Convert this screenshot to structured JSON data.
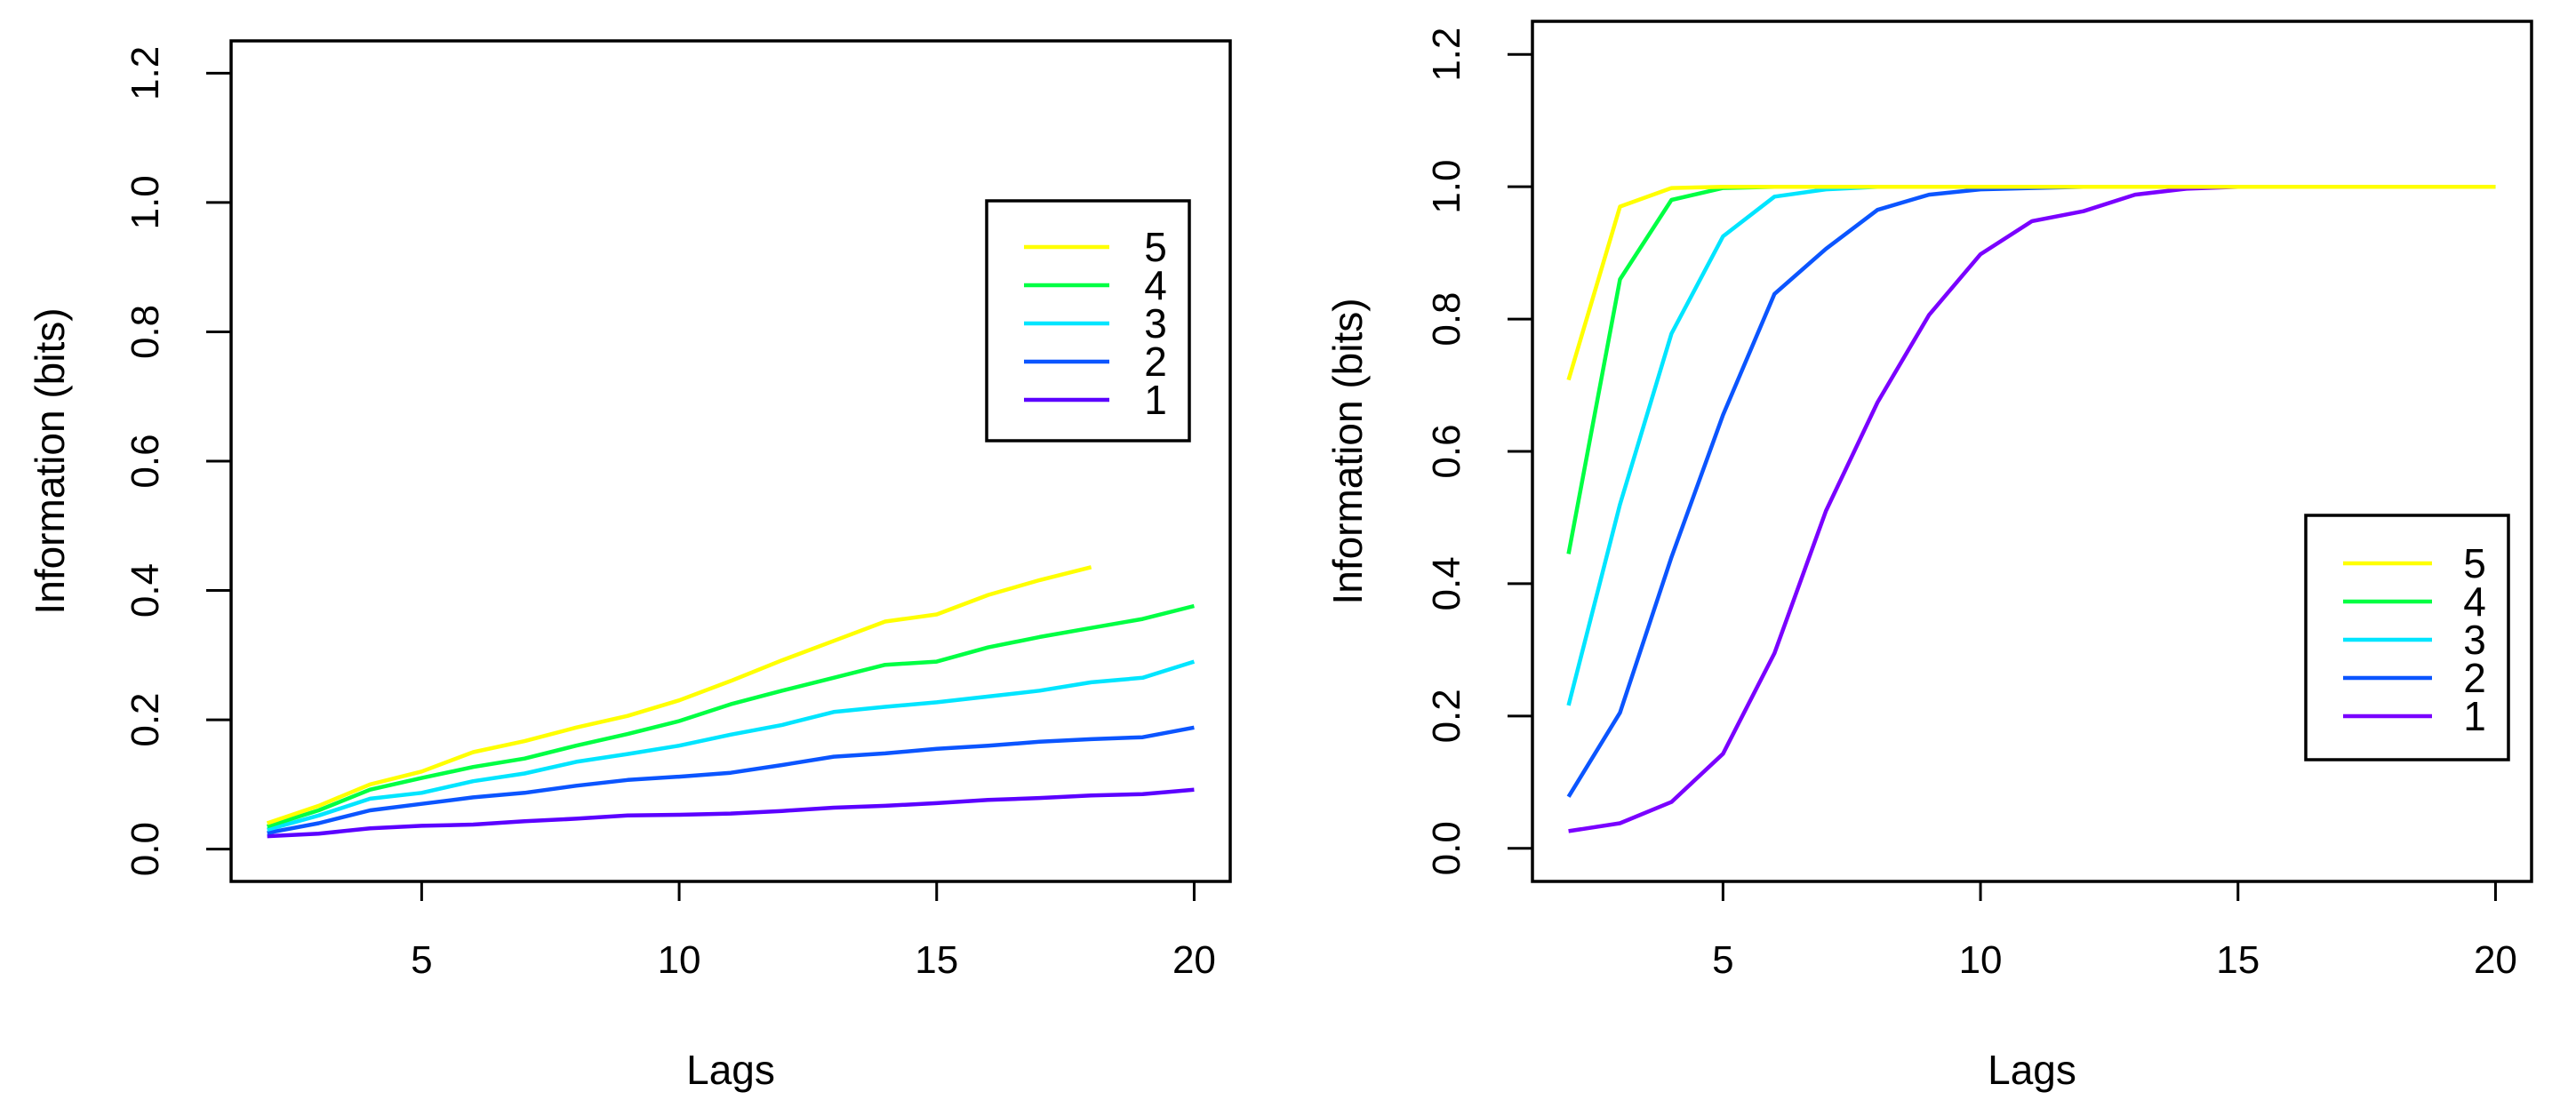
{
  "chart_data": [
    {
      "type": "line",
      "xlabel": "Lags",
      "ylabel": "Information (bits)",
      "xlim": [
        1.3,
        20.7
      ],
      "ylim": [
        -0.05,
        1.25
      ],
      "xticks": [
        5,
        10,
        15,
        20
      ],
      "yticks": [
        0.0,
        0.2,
        0.4,
        0.6,
        0.8,
        1.0,
        1.2
      ],
      "ytick_labels": [
        "0.0",
        "0.2",
        "0.4",
        "0.6",
        "0.8",
        "1.0",
        "1.2"
      ],
      "legend_position": "upper-right",
      "legend_order": [
        "5",
        "4",
        "3",
        "2",
        "1"
      ],
      "series": [
        {
          "name": "1",
          "color": "#5b00ff",
          "x": [
            2,
            3,
            4,
            5,
            6,
            7,
            8,
            9,
            10,
            11,
            12,
            13,
            14,
            15,
            16,
            17,
            18,
            19,
            20
          ],
          "values": [
            0.02,
            0.024,
            0.032,
            0.036,
            0.038,
            0.043,
            0.047,
            0.052,
            0.053,
            0.055,
            0.059,
            0.064,
            0.067,
            0.071,
            0.076,
            0.079,
            0.083,
            0.085,
            0.092
          ]
        },
        {
          "name": "2",
          "color": "#0b55ff",
          "x": [
            2,
            3,
            4,
            5,
            6,
            7,
            8,
            9,
            10,
            11,
            12,
            13,
            14,
            15,
            16,
            17,
            18,
            19,
            20
          ],
          "values": [
            0.025,
            0.04,
            0.06,
            0.07,
            0.08,
            0.087,
            0.098,
            0.107,
            0.112,
            0.118,
            0.13,
            0.143,
            0.148,
            0.155,
            0.16,
            0.166,
            0.17,
            0.173,
            0.188
          ]
        },
        {
          "name": "3",
          "color": "#00e5ff",
          "x": [
            2,
            3,
            4,
            5,
            6,
            7,
            8,
            9,
            10,
            11,
            12,
            13,
            14,
            15,
            16,
            17,
            18,
            19,
            20
          ],
          "values": [
            0.03,
            0.052,
            0.078,
            0.087,
            0.105,
            0.117,
            0.135,
            0.147,
            0.16,
            0.177,
            0.192,
            0.212,
            0.22,
            0.227,
            0.236,
            0.245,
            0.258,
            0.265,
            0.29
          ]
        },
        {
          "name": "4",
          "color": "#00ff43",
          "x": [
            2,
            3,
            4,
            5,
            6,
            7,
            8,
            9,
            10,
            11,
            12,
            13,
            14,
            15,
            16,
            17,
            18,
            19,
            20
          ],
          "values": [
            0.035,
            0.06,
            0.092,
            0.11,
            0.127,
            0.14,
            0.16,
            0.178,
            0.198,
            0.224,
            0.245,
            0.265,
            0.285,
            0.29,
            0.312,
            0.328,
            0.342,
            0.356,
            0.376
          ]
        },
        {
          "name": "5",
          "color": "#ffff00",
          "x": [
            2,
            3,
            4,
            5,
            6,
            7,
            8,
            9,
            10,
            11,
            12,
            13,
            14,
            15,
            16,
            17,
            18
          ],
          "values": [
            0.04,
            0.067,
            0.1,
            0.12,
            0.15,
            0.167,
            0.188,
            0.206,
            0.23,
            0.26,
            0.292,
            0.322,
            0.352,
            0.363,
            0.393,
            0.416,
            0.436
          ]
        }
      ]
    },
    {
      "type": "line",
      "xlabel": "Lags",
      "ylabel": "Information (bits)",
      "xlim": [
        1.3,
        20.7
      ],
      "ylim": [
        -0.05,
        1.25
      ],
      "xticks": [
        5,
        10,
        15,
        20
      ],
      "yticks": [
        0.0,
        0.2,
        0.4,
        0.6,
        0.8,
        1.0,
        1.2
      ],
      "ytick_labels": [
        "0.0",
        "0.2",
        "0.4",
        "0.6",
        "0.8",
        "1.0",
        "1.2"
      ],
      "legend_position": "lower-right",
      "legend_order": [
        "5",
        "4",
        "3",
        "2",
        "1"
      ],
      "series": [
        {
          "name": "1",
          "color": "#7a00ff",
          "x": [
            2,
            3,
            4,
            5,
            6,
            7,
            8,
            9,
            10,
            11,
            12,
            13,
            14,
            15,
            16,
            17,
            18
          ],
          "values": [
            0.026,
            0.038,
            0.07,
            0.143,
            0.295,
            0.51,
            0.674,
            0.806,
            0.898,
            0.948,
            0.963,
            0.988,
            0.997,
            1.0,
            1.0,
            1.0,
            1.0
          ]
        },
        {
          "name": "2",
          "color": "#0b55ff",
          "x": [
            2,
            3,
            4,
            5,
            6,
            7,
            8,
            9,
            10,
            11,
            12,
            13,
            14,
            15,
            16,
            17,
            18
          ],
          "values": [
            0.078,
            0.205,
            0.44,
            0.655,
            0.838,
            0.906,
            0.965,
            0.988,
            0.996,
            0.998,
            1.0,
            1.0,
            1.0,
            1.0,
            1.0,
            1.0,
            1.0
          ]
        },
        {
          "name": "3",
          "color": "#00e5ff",
          "x": [
            2,
            3,
            4,
            5,
            6,
            7,
            8,
            9,
            10,
            11,
            12,
            13,
            14,
            15,
            16,
            17,
            18
          ],
          "values": [
            0.216,
            0.52,
            0.778,
            0.925,
            0.985,
            0.996,
            1.0,
            1.0,
            1.0,
            1.0,
            1.0,
            1.0,
            1.0,
            1.0,
            1.0,
            1.0,
            1.0
          ]
        },
        {
          "name": "4",
          "color": "#00ff43",
          "x": [
            2,
            3,
            4,
            5,
            6,
            7,
            8,
            9,
            10,
            11,
            12,
            13,
            14,
            15,
            16,
            17,
            18,
            19,
            20
          ],
          "values": [
            0.445,
            0.86,
            0.98,
            0.998,
            1.0,
            1.0,
            1.0,
            1.0,
            1.0,
            1.0,
            1.0,
            1.0,
            1.0,
            1.0,
            1.0,
            1.0,
            1.0,
            1.0,
            1.0
          ]
        },
        {
          "name": "5",
          "color": "#ffff00",
          "x": [
            2,
            3,
            4,
            5,
            6,
            7,
            8,
            9,
            10,
            11,
            12,
            13,
            14,
            15,
            16,
            17,
            18,
            19,
            20
          ],
          "values": [
            0.708,
            0.97,
            0.998,
            1.0,
            1.0,
            1.0,
            1.0,
            1.0,
            1.0,
            1.0,
            1.0,
            1.0,
            1.0,
            1.0,
            1.0,
            1.0,
            1.0,
            1.0,
            1.0
          ]
        }
      ]
    }
  ]
}
